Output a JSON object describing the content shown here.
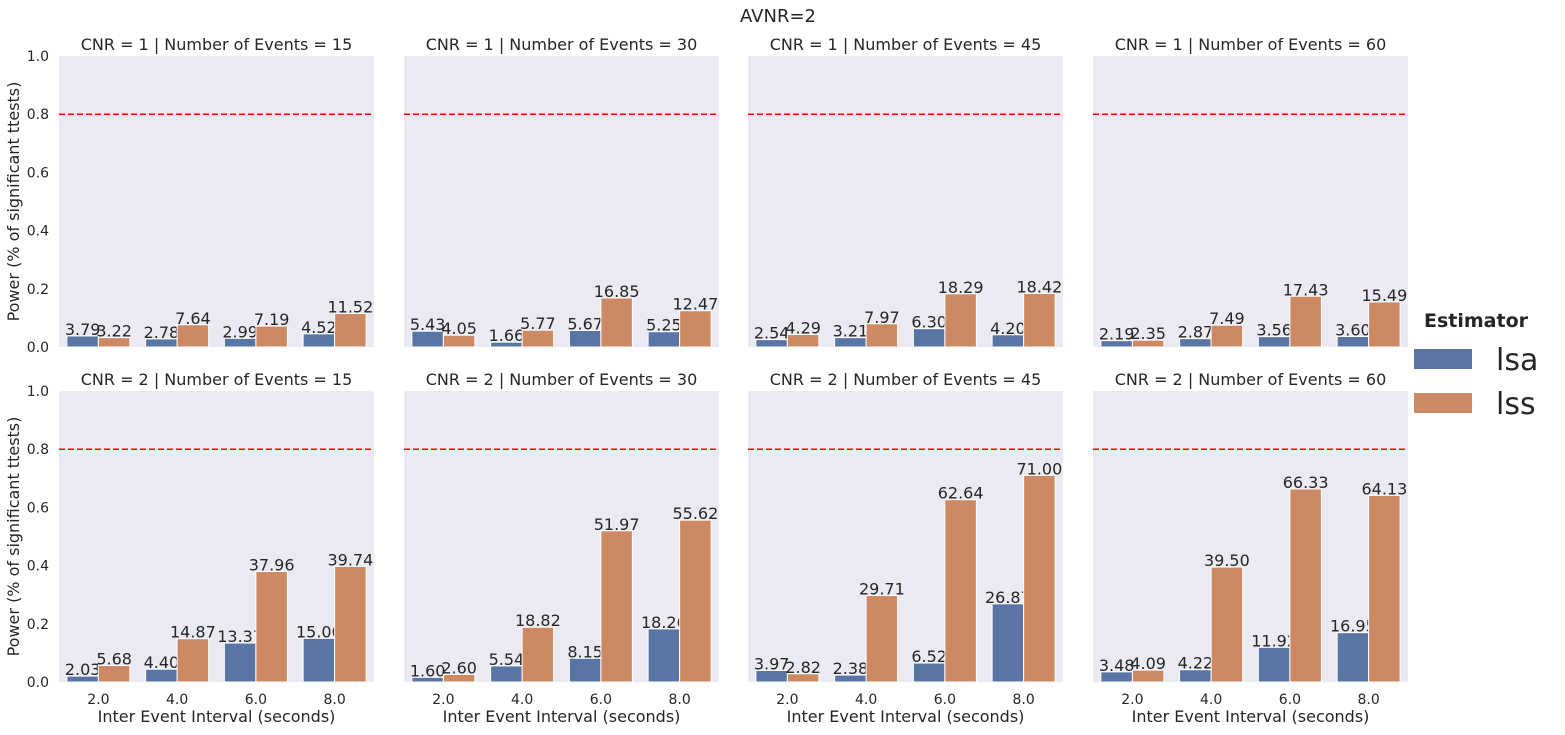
{
  "suptitle": "AVNR=2",
  "ylabel": "Power (% of significant ttests)",
  "xlabel": "Inter Event Interval (seconds)",
  "legend": {
    "title": "Estimator",
    "placement": "right",
    "items": [
      {
        "label": "lsa",
        "color": "#5875a4"
      },
      {
        "label": "lss",
        "color": "#cc8963"
      }
    ]
  },
  "colors": {
    "lsa": "#5875a4",
    "lss": "#cc8963",
    "panel_bg": "#eaeaf2",
    "threshold": "#ff0000"
  },
  "chart_data": [
    {
      "type": "bar",
      "title": "CNR = 1 | Number of Events = 15",
      "categories": [
        "2.0",
        "4.0",
        "6.0",
        "8.0"
      ],
      "ylim": [
        0,
        1
      ],
      "threshold": 0.8,
      "series": [
        {
          "name": "lsa",
          "values": [
            0.0379,
            0.0278,
            0.0299,
            0.0452
          ],
          "labels": [
            "3.79",
            "2.78",
            "2.99",
            "4.52"
          ]
        },
        {
          "name": "lss",
          "values": [
            0.0322,
            0.0764,
            0.0719,
            0.1152
          ],
          "labels": [
            "3.22",
            "7.64",
            "7.19",
            "11.52"
          ]
        }
      ]
    },
    {
      "type": "bar",
      "title": "CNR = 1 | Number of Events = 30",
      "categories": [
        "2.0",
        "4.0",
        "6.0",
        "8.0"
      ],
      "ylim": [
        0,
        1
      ],
      "threshold": 0.8,
      "series": [
        {
          "name": "lsa",
          "values": [
            0.0543,
            0.0166,
            0.0567,
            0.0525
          ],
          "labels": [
            "5.43",
            "1.66",
            "5.67",
            "5.25"
          ]
        },
        {
          "name": "lss",
          "values": [
            0.0405,
            0.0577,
            0.1685,
            0.1247
          ],
          "labels": [
            "4.05",
            "5.77",
            "16.85",
            "12.47"
          ]
        }
      ]
    },
    {
      "type": "bar",
      "title": "CNR = 1 | Number of Events = 45",
      "categories": [
        "2.0",
        "4.0",
        "6.0",
        "8.0"
      ],
      "ylim": [
        0,
        1
      ],
      "threshold": 0.8,
      "series": [
        {
          "name": "lsa",
          "values": [
            0.0254,
            0.0321,
            0.063,
            0.042
          ],
          "labels": [
            "2.54",
            "3.21",
            "6.30",
            "4.20"
          ]
        },
        {
          "name": "lss",
          "values": [
            0.0429,
            0.0797,
            0.1829,
            0.1842
          ],
          "labels": [
            "4.29",
            "7.97",
            "18.29",
            "18.42"
          ]
        }
      ]
    },
    {
      "type": "bar",
      "title": "CNR = 1 | Number of Events = 60",
      "categories": [
        "2.0",
        "4.0",
        "6.0",
        "8.0"
      ],
      "ylim": [
        0,
        1
      ],
      "threshold": 0.8,
      "series": [
        {
          "name": "lsa",
          "values": [
            0.0219,
            0.0287,
            0.0356,
            0.036
          ],
          "labels": [
            "2.19",
            "2.87",
            "3.56",
            "3.60"
          ]
        },
        {
          "name": "lss",
          "values": [
            0.0235,
            0.0749,
            0.1743,
            0.1549
          ],
          "labels": [
            "2.35",
            "7.49",
            "17.43",
            "15.49"
          ]
        }
      ]
    },
    {
      "type": "bar",
      "title": "CNR = 2 | Number of Events = 15",
      "categories": [
        "2.0",
        "4.0",
        "6.0",
        "8.0"
      ],
      "ylim": [
        0,
        1
      ],
      "threshold": 0.8,
      "series": [
        {
          "name": "lsa",
          "values": [
            0.0203,
            0.044,
            0.1337,
            0.15
          ],
          "labels": [
            "2.03",
            "4.40",
            "13.37",
            "15.00"
          ]
        },
        {
          "name": "lss",
          "values": [
            0.0568,
            0.1487,
            0.3796,
            0.3974
          ],
          "labels": [
            "5.68",
            "14.87",
            "37.96",
            "39.74"
          ]
        }
      ]
    },
    {
      "type": "bar",
      "title": "CNR = 2 | Number of Events = 30",
      "categories": [
        "2.0",
        "4.0",
        "6.0",
        "8.0"
      ],
      "ylim": [
        0,
        1
      ],
      "threshold": 0.8,
      "series": [
        {
          "name": "lsa",
          "values": [
            0.016,
            0.0554,
            0.0815,
            0.1826
          ],
          "labels": [
            "1.60",
            "5.54",
            "8.15",
            "18.26"
          ]
        },
        {
          "name": "lss",
          "values": [
            0.026,
            0.1882,
            0.5197,
            0.5562
          ],
          "labels": [
            "2.60",
            "18.82",
            "51.97",
            "55.62"
          ]
        }
      ]
    },
    {
      "type": "bar",
      "title": "CNR = 2 | Number of Events = 45",
      "categories": [
        "2.0",
        "4.0",
        "6.0",
        "8.0"
      ],
      "ylim": [
        0,
        1
      ],
      "threshold": 0.8,
      "series": [
        {
          "name": "lsa",
          "values": [
            0.0397,
            0.0238,
            0.0652,
            0.2687
          ],
          "labels": [
            "3.97",
            "2.38",
            "6.52",
            "26.87"
          ]
        },
        {
          "name": "lss",
          "values": [
            0.0282,
            0.2971,
            0.6264,
            0.71
          ],
          "labels": [
            "2.82",
            "29.71",
            "62.64",
            "71.00"
          ]
        }
      ]
    },
    {
      "type": "bar",
      "title": "CNR = 2 | Number of Events = 60",
      "categories": [
        "2.0",
        "4.0",
        "6.0",
        "8.0"
      ],
      "ylim": [
        0,
        1
      ],
      "threshold": 0.8,
      "series": [
        {
          "name": "lsa",
          "values": [
            0.0348,
            0.0422,
            0.1192,
            0.1695
          ],
          "labels": [
            "3.48",
            "4.22",
            "11.92",
            "16.95"
          ]
        },
        {
          "name": "lss",
          "values": [
            0.0409,
            0.395,
            0.6633,
            0.6413
          ],
          "labels": [
            "4.09",
            "39.50",
            "66.33",
            "64.13"
          ]
        }
      ]
    }
  ]
}
